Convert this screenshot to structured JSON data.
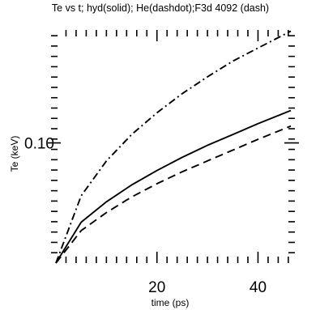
{
  "chart_data": {
    "type": "line",
    "title": "Te vs t; hyd(solid); He(dashdot);F3d 4092 (dash)",
    "xlabel": "time (ps)",
    "ylabel": "Te (keV)",
    "xlim": [
      0,
      46.5
    ],
    "ylim": [
      0,
      0.194
    ],
    "x_ticks": [
      20,
      40
    ],
    "x_tick_labels": [
      "20",
      "40"
    ],
    "y_ticks": [
      0.1
    ],
    "y_tick_labels": [
      "0.10"
    ],
    "grid": false,
    "series": [
      {
        "name": "hyd",
        "style": "solid",
        "x": [
          0,
          5,
          10,
          15,
          20,
          25,
          30,
          35,
          40,
          46.5
        ],
        "y": [
          0,
          0.034,
          0.051,
          0.065,
          0.077,
          0.088,
          0.098,
          0.107,
          0.116,
          0.127
        ]
      },
      {
        "name": "He",
        "style": "dashdot",
        "x": [
          0,
          5,
          10,
          15,
          20,
          25,
          30,
          35,
          40,
          46.5
        ],
        "y": [
          0,
          0.056,
          0.085,
          0.107,
          0.125,
          0.141,
          0.155,
          0.168,
          0.179,
          0.193
        ]
      },
      {
        "name": "F3d 4092",
        "style": "dash",
        "x": [
          0,
          5,
          10,
          15,
          20,
          25,
          30,
          35,
          40,
          46.5
        ],
        "y": [
          0,
          0.027,
          0.042,
          0.055,
          0.066,
          0.076,
          0.085,
          0.094,
          0.103,
          0.114
        ]
      }
    ]
  }
}
